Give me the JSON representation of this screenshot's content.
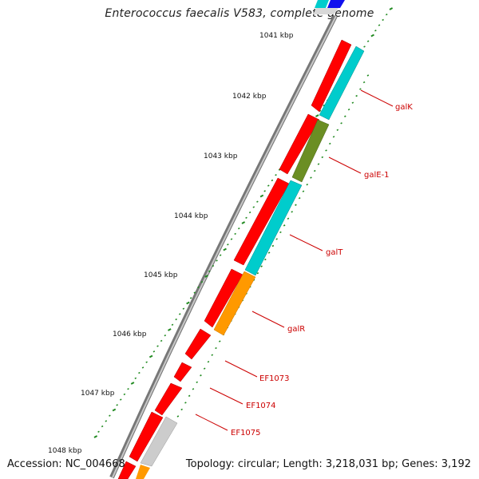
{
  "title": "Enterococcus faecalis V583, complete genome",
  "accession": "Accession: NC_004668",
  "topology": "Topology: circular; Length: 3,218,031 bp; Genes: 3,192",
  "ruler": [
    {
      "label": "1041 kbp"
    },
    {
      "label": "1042 kbp"
    },
    {
      "label": "1043 kbp"
    },
    {
      "label": "1044 kbp"
    },
    {
      "label": "1045 kbp"
    },
    {
      "label": "1046 kbp"
    },
    {
      "label": "1047 kbp"
    },
    {
      "label": "1048 kbp"
    }
  ],
  "genes": [
    {
      "name": "galK"
    },
    {
      "name": "galE-1"
    },
    {
      "name": "galT"
    },
    {
      "name": "galR"
    },
    {
      "name": "EF1073"
    },
    {
      "name": "EF1074"
    },
    {
      "name": "EF1075"
    }
  ],
  "colors": {
    "forward_cds": "#ff0000",
    "galK": "#00cccc",
    "galE-1": "#6b8e23",
    "galT": "#00cccc",
    "galR": "#ff9900",
    "other": "#cccccc",
    "blue": "#1010ee",
    "backbone": "#888888",
    "ticks": "#228b22",
    "label": "#cc0000"
  }
}
